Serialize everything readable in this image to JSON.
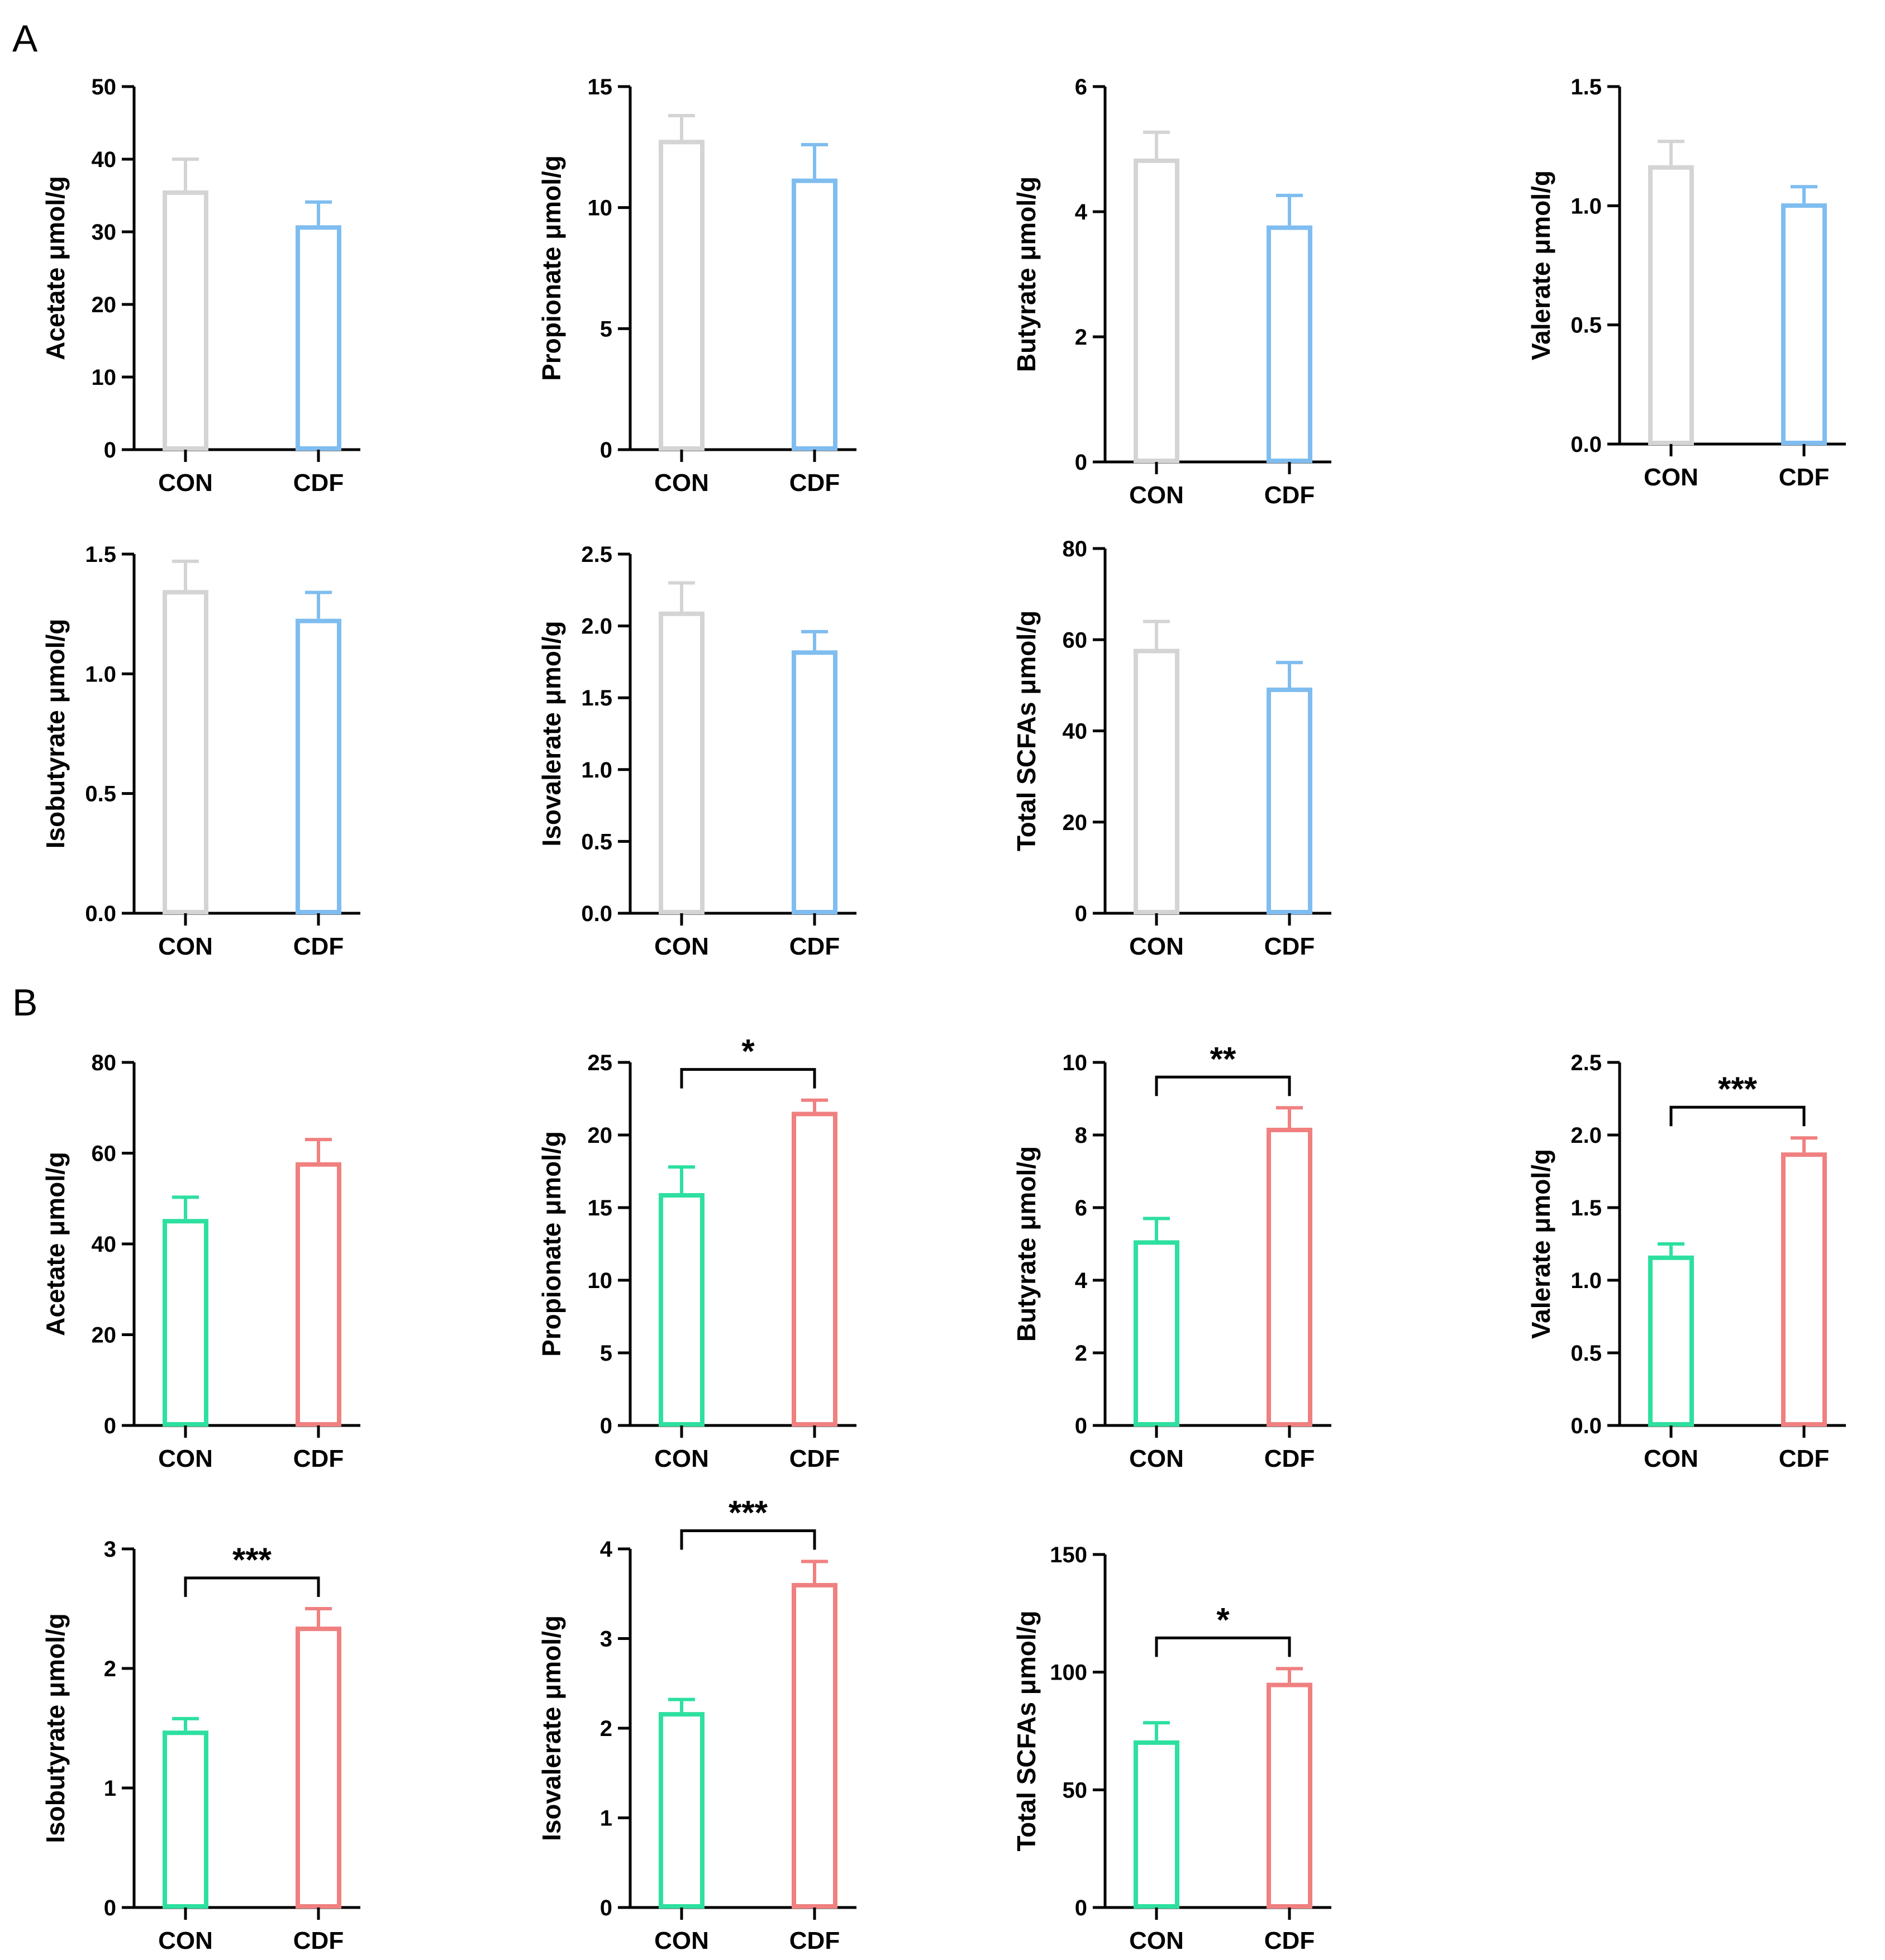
{
  "panels": [
    "A",
    "B"
  ],
  "colors": {
    "A": [
      "#d4d4d4",
      "#7fbdf0"
    ],
    "B": [
      "#2de0a0",
      "#f08080"
    ],
    "axis": "#000000"
  },
  "chart_data": [
    {
      "panel": "A",
      "type": "bar",
      "ylabel": "Acetate μmol/g",
      "categories": [
        "CON",
        "CDF"
      ],
      "values": [
        35.7,
        30.9
      ],
      "errors": [
        4.3,
        3.2
      ],
      "ylim": [
        0,
        50
      ],
      "yticks": [
        0,
        10,
        20,
        30,
        40,
        50
      ],
      "tick_labels": [
        "0",
        "10",
        "20",
        "30",
        "40",
        "50"
      ],
      "significance": ""
    },
    {
      "panel": "A",
      "type": "bar",
      "ylabel": "Propionate μmol/g",
      "categories": [
        "CON",
        "CDF"
      ],
      "values": [
        12.8,
        11.2
      ],
      "errors": [
        1.0,
        1.4
      ],
      "ylim": [
        0,
        15
      ],
      "yticks": [
        0,
        5,
        10,
        15
      ],
      "tick_labels": [
        "0",
        "5",
        "10",
        "15"
      ],
      "significance": ""
    },
    {
      "panel": "A",
      "type": "bar",
      "ylabel": "Butyrate μmol/g",
      "categories": [
        "CON",
        "CDF"
      ],
      "values": [
        4.85,
        3.78
      ],
      "errors": [
        0.42,
        0.48
      ],
      "ylim": [
        0,
        6
      ],
      "yticks": [
        0,
        2,
        4,
        6
      ],
      "tick_labels": [
        "0",
        "2",
        "4",
        "6"
      ],
      "significance": ""
    },
    {
      "panel": "A",
      "type": "bar",
      "ylabel": "Valerate μmol/g",
      "categories": [
        "CON",
        "CDF"
      ],
      "values": [
        1.17,
        1.01
      ],
      "errors": [
        0.1,
        0.07
      ],
      "ylim": [
        0,
        1.5
      ],
      "yticks": [
        0,
        0.5,
        1.0,
        1.5
      ],
      "tick_labels": [
        "0.0",
        "0.5",
        "1.0",
        "1.5"
      ],
      "significance": ""
    },
    {
      "panel": "A",
      "type": "bar",
      "ylabel": "Isobutyrate μmol/g",
      "categories": [
        "CON",
        "CDF"
      ],
      "values": [
        1.35,
        1.23
      ],
      "errors": [
        0.12,
        0.11
      ],
      "ylim": [
        0,
        1.5
      ],
      "yticks": [
        0,
        0.5,
        1.0,
        1.5
      ],
      "tick_labels": [
        "0.0",
        "0.5",
        "1.0",
        "1.5"
      ],
      "significance": ""
    },
    {
      "panel": "A",
      "type": "bar",
      "ylabel": "Isovalerate μmol/g",
      "categories": [
        "CON",
        "CDF"
      ],
      "values": [
        2.1,
        1.83
      ],
      "errors": [
        0.2,
        0.13
      ],
      "ylim": [
        0,
        2.5
      ],
      "yticks": [
        0,
        0.5,
        1.0,
        1.5,
        2.0,
        2.5
      ],
      "tick_labels": [
        "0.0",
        "0.5",
        "1.0",
        "1.5",
        "2.0",
        "2.5"
      ],
      "significance": ""
    },
    {
      "panel": "A",
      "type": "bar",
      "ylabel": "Total SCFAs μmol/g",
      "categories": [
        "CON",
        "CDF"
      ],
      "values": [
        58,
        49.5
      ],
      "errors": [
        6,
        5.5
      ],
      "ylim": [
        0,
        80
      ],
      "yticks": [
        0,
        20,
        40,
        60,
        80
      ],
      "tick_labels": [
        "0",
        "20",
        "40",
        "60",
        "80"
      ],
      "significance": ""
    },
    {
      "panel": "B",
      "type": "bar",
      "ylabel": "Acetate μmol/g",
      "categories": [
        "CON",
        "CDF"
      ],
      "values": [
        45.5,
        58
      ],
      "errors": [
        4.8,
        5
      ],
      "ylim": [
        0,
        80
      ],
      "yticks": [
        0,
        20,
        40,
        60,
        80
      ],
      "tick_labels": [
        "0",
        "20",
        "40",
        "60",
        "80"
      ],
      "significance": ""
    },
    {
      "panel": "B",
      "type": "bar",
      "ylabel": "Propionate μmol/g",
      "categories": [
        "CON",
        "CDF"
      ],
      "values": [
        16,
        21.6
      ],
      "errors": [
        1.8,
        0.8
      ],
      "ylim": [
        0,
        25
      ],
      "yticks": [
        0,
        5,
        10,
        15,
        20,
        25
      ],
      "tick_labels": [
        "0",
        "5",
        "10",
        "15",
        "20",
        "25"
      ],
      "significance": "*"
    },
    {
      "panel": "B",
      "type": "bar",
      "ylabel": "Butyrate μmol/g",
      "categories": [
        "CON",
        "CDF"
      ],
      "values": [
        5.1,
        8.2
      ],
      "errors": [
        0.6,
        0.55
      ],
      "ylim": [
        0,
        10
      ],
      "yticks": [
        0,
        2,
        4,
        6,
        8,
        10
      ],
      "tick_labels": [
        "0",
        "2",
        "4",
        "6",
        "8",
        "10"
      ],
      "significance": "**"
    },
    {
      "panel": "B",
      "type": "bar",
      "ylabel": "Valerate μmol/g",
      "categories": [
        "CON",
        "CDF"
      ],
      "values": [
        1.17,
        1.88
      ],
      "errors": [
        0.08,
        0.1
      ],
      "ylim": [
        0,
        2.5
      ],
      "yticks": [
        0,
        0.5,
        1.0,
        1.5,
        2.0,
        2.5
      ],
      "tick_labels": [
        "0.0",
        "0.5",
        "1.0",
        "1.5",
        "2.0",
        "2.5"
      ],
      "significance": "***"
    },
    {
      "panel": "B",
      "type": "bar",
      "ylabel": "Isobutyrate μmol/g",
      "categories": [
        "CON",
        "CDF"
      ],
      "values": [
        1.48,
        2.35
      ],
      "errors": [
        0.1,
        0.15
      ],
      "ylim": [
        0,
        3
      ],
      "yticks": [
        0,
        1,
        2,
        3
      ],
      "tick_labels": [
        "0",
        "1",
        "2",
        "3"
      ],
      "significance": "***"
    },
    {
      "panel": "B",
      "type": "bar",
      "ylabel": "Isovalerate μmol/g",
      "categories": [
        "CON",
        "CDF"
      ],
      "values": [
        2.18,
        3.62
      ],
      "errors": [
        0.14,
        0.24
      ],
      "ylim": [
        0,
        4
      ],
      "yticks": [
        0,
        1,
        2,
        3,
        4
      ],
      "tick_labels": [
        "0",
        "1",
        "2",
        "3",
        "4"
      ],
      "significance": "***"
    },
    {
      "panel": "B",
      "type": "bar",
      "ylabel": "Total SCFAs μmol/g",
      "categories": [
        "CON",
        "CDF"
      ],
      "values": [
        71,
        95.5
      ],
      "errors": [
        7.5,
        6
      ],
      "ylim": [
        0,
        150
      ],
      "yticks": [
        0,
        50,
        100,
        150
      ],
      "tick_labels": [
        "0",
        "50",
        "100",
        "150"
      ],
      "significance": "*"
    }
  ]
}
